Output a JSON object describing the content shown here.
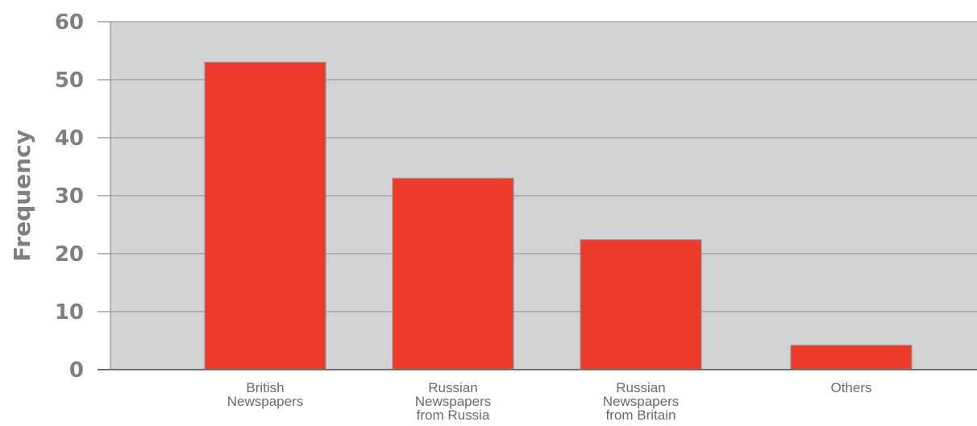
{
  "chart_data": {
    "type": "bar",
    "categories": [
      [
        "British",
        "Newspapers"
      ],
      [
        "Russian",
        "Newspapers",
        "from Russia"
      ],
      [
        "Russian",
        "Newspapers",
        "from Britain"
      ],
      [
        "Others"
      ]
    ],
    "values": [
      53,
      33,
      22.4,
      4.2
    ],
    "title": "",
    "xlabel": "",
    "ylabel": "Frequency",
    "ylim": [
      0,
      60
    ],
    "yticks": [
      "0",
      "10",
      "20",
      "30",
      "40",
      "50",
      "60"
    ],
    "grid": "horizontal",
    "legend": "none",
    "colors": {
      "bar": "#ee3a2a",
      "bar_edge": "#9a8e8c",
      "plot_bg": "#d1d3d4",
      "grid": "#8f8f8f",
      "text": "#808080"
    }
  }
}
